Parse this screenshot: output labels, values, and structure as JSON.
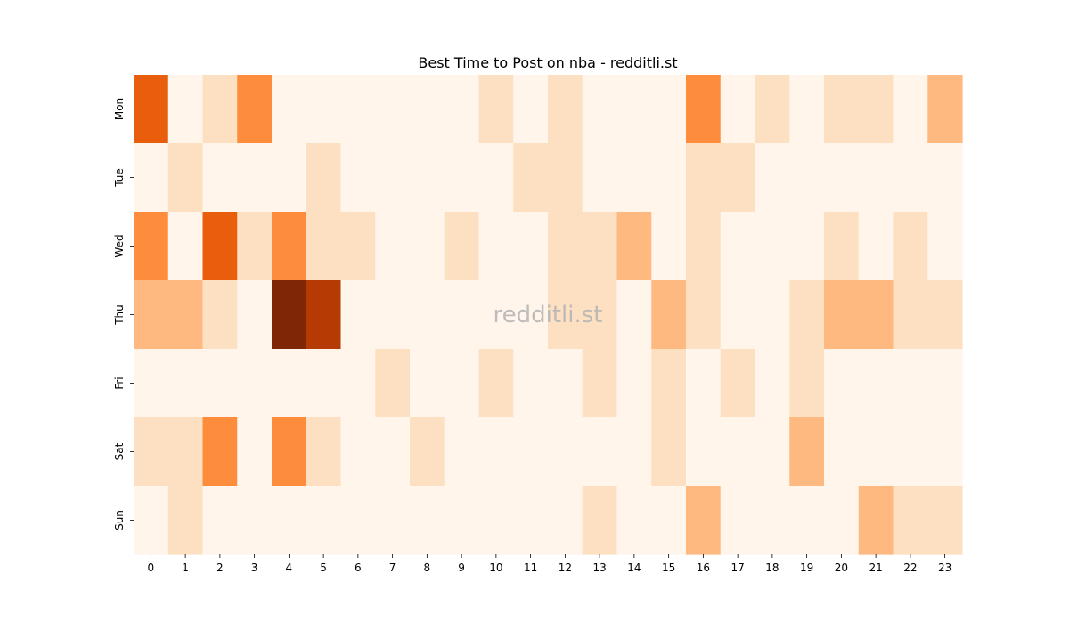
{
  "chart_data": {
    "type": "heatmap",
    "title": "Best Time to Post on nba - redditli.st",
    "watermark": "redditli.st",
    "x_categories": [
      "0",
      "1",
      "2",
      "3",
      "4",
      "5",
      "6",
      "7",
      "8",
      "9",
      "10",
      "11",
      "12",
      "13",
      "14",
      "15",
      "16",
      "17",
      "18",
      "19",
      "20",
      "21",
      "22",
      "23"
    ],
    "y_categories": [
      "Mon",
      "Tue",
      "Wed",
      "Thu",
      "Fri",
      "Sat",
      "Sun"
    ],
    "xlabel": "",
    "ylabel": "",
    "levels": [
      0,
      1,
      2,
      3,
      4,
      5
    ],
    "colormap": [
      "#fff5eb",
      "#fde0c2",
      "#fdb97f",
      "#fd8c3c",
      "#e95e0d",
      "#b53a03",
      "#7f2704"
    ],
    "values": [
      [
        4,
        0,
        1,
        3,
        0,
        0,
        0,
        0,
        0,
        0,
        1,
        0,
        1,
        0,
        0,
        0,
        3,
        0,
        1,
        0,
        1,
        1,
        0,
        2
      ],
      [
        0,
        1,
        0,
        0,
        0,
        1,
        0,
        0,
        0,
        0,
        0,
        1,
        1,
        0,
        0,
        0,
        1,
        1,
        0,
        0,
        0,
        0,
        0,
        0
      ],
      [
        3,
        0,
        4,
        1,
        3,
        1,
        1,
        0,
        0,
        1,
        0,
        0,
        1,
        1,
        2,
        0,
        1,
        0,
        0,
        0,
        1,
        0,
        1,
        0
      ],
      [
        2,
        2,
        1,
        0,
        6,
        5,
        0,
        0,
        0,
        0,
        0,
        0,
        1,
        1,
        0,
        2,
        1,
        0,
        0,
        1,
        2,
        2,
        1,
        1
      ],
      [
        0,
        0,
        0,
        0,
        0,
        0,
        0,
        1,
        0,
        0,
        1,
        0,
        0,
        1,
        0,
        1,
        0,
        1,
        0,
        1,
        0,
        0,
        0,
        0
      ],
      [
        1,
        1,
        3,
        0,
        3,
        1,
        0,
        0,
        1,
        0,
        0,
        0,
        0,
        0,
        0,
        1,
        0,
        0,
        0,
        2,
        0,
        0,
        0,
        0
      ],
      [
        0,
        1,
        0,
        0,
        0,
        0,
        0,
        0,
        0,
        0,
        0,
        0,
        0,
        1,
        0,
        0,
        2,
        0,
        0,
        0,
        0,
        2,
        1,
        1
      ]
    ]
  }
}
